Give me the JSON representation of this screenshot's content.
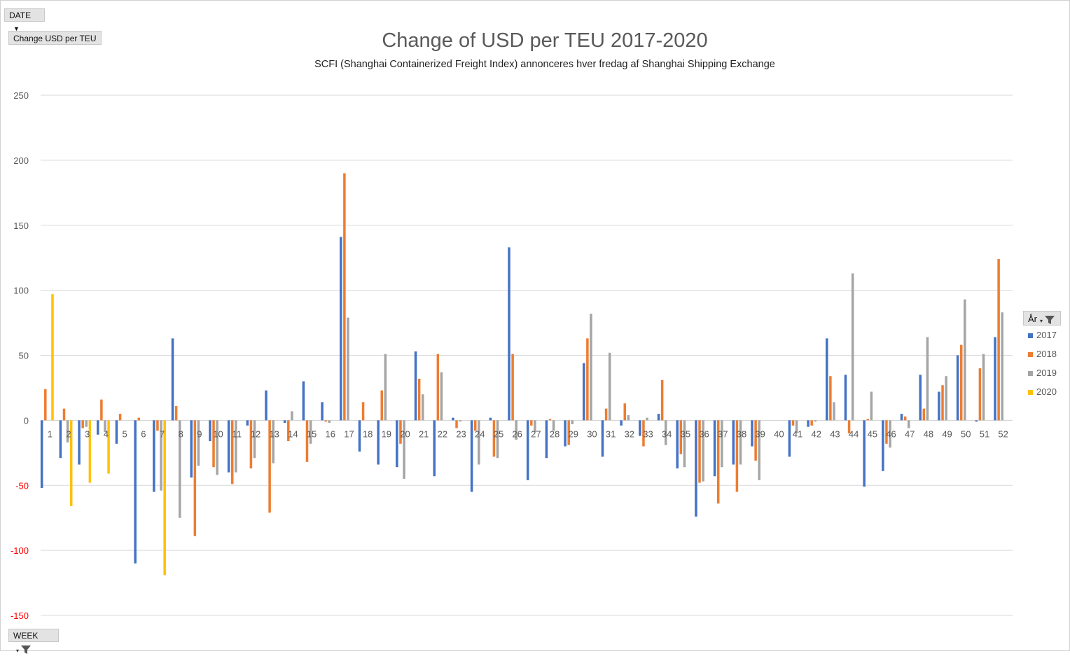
{
  "fields": {
    "date_label": "DATE",
    "value_label": "Change USD per TEU",
    "week_label": "WEEK",
    "year_label": "År"
  },
  "chart_data": {
    "type": "bar",
    "title": "Change of USD per TEU 2017-2020",
    "subtitle": "SCFI (Shanghai Containerized Freight Index) annonceres hver fredag af Shanghai Shipping Exchange",
    "xlabel": "",
    "ylabel": "",
    "ylim": [
      -150,
      250
    ],
    "yticks": [
      250,
      200,
      150,
      100,
      50,
      0,
      -50,
      -100,
      -150
    ],
    "negative_tick_color": "#ff0000",
    "grid": true,
    "legend_position": "right",
    "categories": [
      "1",
      "2",
      "3",
      "4",
      "5",
      "6",
      "7",
      "8",
      "9",
      "10",
      "11",
      "12",
      "13",
      "14",
      "15",
      "16",
      "17",
      "18",
      "19",
      "20",
      "21",
      "22",
      "23",
      "24",
      "25",
      "26",
      "27",
      "28",
      "29",
      "30",
      "31",
      "32",
      "33",
      "34",
      "35",
      "36",
      "37",
      "38",
      "39",
      "40",
      "41",
      "42",
      "43",
      "44",
      "45",
      "46",
      "47",
      "48",
      "49",
      "50",
      "51",
      "52"
    ],
    "series": [
      {
        "name": "2017",
        "color": "#4472c4",
        "values": [
          -52,
          -29,
          -34,
          -11,
          -18,
          -110,
          -55,
          63,
          -44,
          -16,
          -40,
          -4,
          23,
          -2,
          30,
          14,
          141,
          -24,
          -34,
          -36,
          53,
          -43,
          2,
          -55,
          2,
          133,
          -46,
          -29,
          -20,
          44,
          -28,
          -4,
          -12,
          5,
          -37,
          -74,
          -43,
          -34,
          -20,
          0,
          -28,
          -5,
          63,
          35,
          -51,
          -39,
          5,
          35,
          22,
          50,
          -1,
          64
        ]
      },
      {
        "name": "2018",
        "color": "#ed7d31",
        "values": [
          24,
          9,
          -6,
          16,
          5,
          2,
          -8,
          11,
          -89,
          -36,
          -49,
          -37,
          -71,
          -16,
          -32,
          -1,
          190,
          14,
          23,
          -18,
          32,
          51,
          -6,
          -8,
          -28,
          51,
          -4,
          1,
          -19,
          63,
          9,
          13,
          -20,
          31,
          -26,
          -48,
          -64,
          -55,
          -31,
          0,
          -4,
          -4,
          34,
          -10,
          1,
          -18,
          3,
          9,
          27,
          58,
          40,
          124
        ]
      },
      {
        "name": "2019",
        "color": "#a5a5a5",
        "values": [
          0,
          -17,
          -5,
          -9,
          0,
          0,
          -54,
          -75,
          -35,
          -42,
          -40,
          -29,
          -33,
          7,
          -18,
          -2,
          79,
          0,
          51,
          -45,
          20,
          37,
          -1,
          -34,
          -29,
          -15,
          -9,
          -8,
          -3,
          82,
          52,
          4,
          2,
          -19,
          -36,
          -47,
          -36,
          -34,
          -46,
          0,
          -10,
          -1,
          14,
          113,
          22,
          -21,
          -6,
          64,
          34,
          93,
          51,
          83
        ]
      },
      {
        "name": "2020",
        "color": "#ffc000",
        "values": [
          97,
          -66,
          -48,
          -41,
          0,
          0,
          -119,
          null,
          null,
          null,
          null,
          null,
          null,
          null,
          null,
          null,
          null,
          null,
          null,
          null,
          null,
          null,
          null,
          null,
          null,
          null,
          null,
          null,
          null,
          null,
          null,
          null,
          null,
          null,
          null,
          null,
          null,
          null,
          null,
          null,
          null,
          null,
          null,
          null,
          null,
          null,
          null,
          null,
          null,
          null,
          null,
          null
        ]
      }
    ]
  }
}
